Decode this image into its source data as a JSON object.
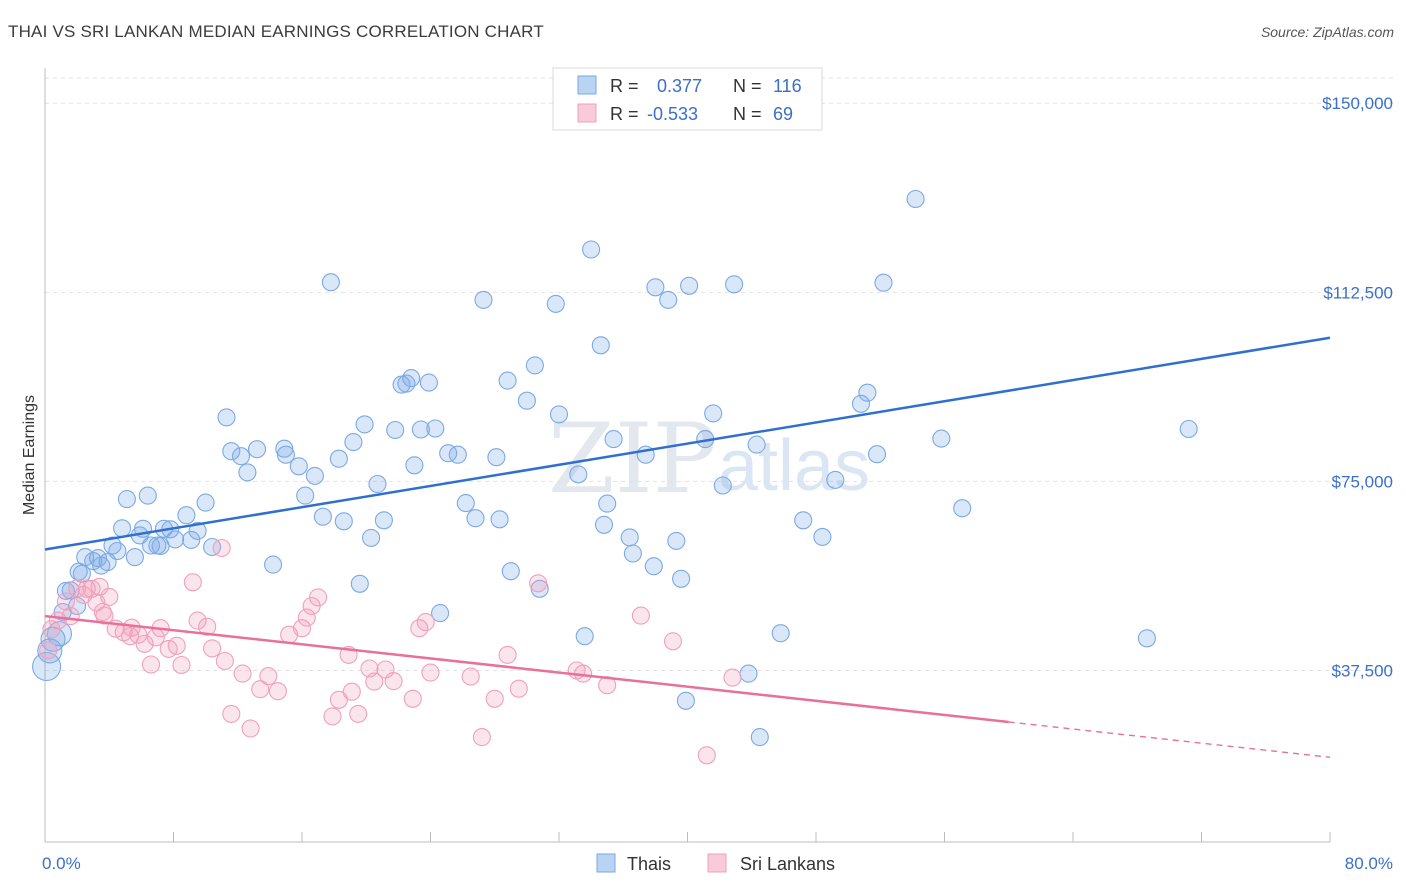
{
  "header": {
    "title": "THAI VS SRI LANKAN MEDIAN EARNINGS CORRELATION CHART",
    "source": "Source: ZipAtlas.com"
  },
  "watermark": {
    "zip": "ZIP",
    "atlas": "atlas"
  },
  "legend": {
    "rows": [
      {
        "r_label": "R =",
        "r_value": "0.377",
        "n_label": "N =",
        "n_value": "116",
        "color": "#7aaae6"
      },
      {
        "r_label": "R =",
        "r_value": "-0.533",
        "n_label": "N =",
        "n_value": "69",
        "color": "#f0a0bc"
      }
    ]
  },
  "bottom_legend": {
    "items": [
      {
        "label": "Thais",
        "color": "#7aaae6"
      },
      {
        "label": "Sri Lankans",
        "color": "#f0a0bc"
      }
    ]
  },
  "chart_data": {
    "type": "scatter",
    "title": "THAI VS SRI LANKAN MEDIAN EARNINGS CORRELATION CHART",
    "xlabel": "",
    "ylabel": "Median Earnings",
    "xlim": [
      0,
      80
    ],
    "ylim": [
      3500,
      155000
    ],
    "x_tick_labels": [
      "0.0%",
      "80.0%"
    ],
    "y_ticks": [
      37500,
      75000,
      112500,
      150000
    ],
    "y_tick_labels": [
      "$37,500",
      "$75,000",
      "$112,500",
      "$150,000"
    ],
    "grid": true,
    "series": [
      {
        "name": "Thais",
        "color": "#7aaae6",
        "line_color": "#2f6fcf",
        "trend": {
          "x": [
            0,
            80
          ],
          "y": [
            61500,
            103500
          ]
        },
        "points": [
          [
            0.1,
            38300
          ],
          [
            0.3,
            41400
          ],
          [
            0.5,
            43700
          ],
          [
            0.9,
            44800
          ],
          [
            1.1,
            49100
          ],
          [
            1.3,
            53300
          ],
          [
            1.6,
            53400
          ],
          [
            2.0,
            50300
          ],
          [
            2.1,
            57100
          ],
          [
            2.3,
            56700
          ],
          [
            2.5,
            60000
          ],
          [
            3.0,
            59200
          ],
          [
            3.3,
            59800
          ],
          [
            3.5,
            58300
          ],
          [
            3.9,
            59000
          ],
          [
            4.2,
            62300
          ],
          [
            4.5,
            61200
          ],
          [
            4.8,
            65700
          ],
          [
            5.1,
            71500
          ],
          [
            5.6,
            60000
          ],
          [
            5.9,
            64300
          ],
          [
            6.1,
            65600
          ],
          [
            6.4,
            72200
          ],
          [
            6.6,
            62300
          ],
          [
            7.0,
            62300
          ],
          [
            7.2,
            62200
          ],
          [
            7.4,
            65600
          ],
          [
            7.8,
            65500
          ],
          [
            8.1,
            63500
          ],
          [
            8.8,
            68300
          ],
          [
            9.1,
            63400
          ],
          [
            9.5,
            65200
          ],
          [
            10.0,
            70800
          ],
          [
            10.4,
            62000
          ],
          [
            11.3,
            87700
          ],
          [
            11.6,
            81000
          ],
          [
            12.2,
            80000
          ],
          [
            12.6,
            76800
          ],
          [
            13.2,
            81400
          ],
          [
            14.2,
            58500
          ],
          [
            14.9,
            81500
          ],
          [
            15.0,
            80300
          ],
          [
            15.8,
            78000
          ],
          [
            16.2,
            72200
          ],
          [
            16.8,
            76100
          ],
          [
            17.3,
            68000
          ],
          [
            17.8,
            114500
          ],
          [
            18.3,
            79500
          ],
          [
            18.6,
            67100
          ],
          [
            19.2,
            82800
          ],
          [
            19.6,
            54700
          ],
          [
            19.9,
            86300
          ],
          [
            20.3,
            63800
          ],
          [
            20.7,
            74500
          ],
          [
            21.1,
            67300
          ],
          [
            21.8,
            85200
          ],
          [
            22.2,
            94200
          ],
          [
            22.5,
            94400
          ],
          [
            22.8,
            95500
          ],
          [
            23.0,
            78200
          ],
          [
            23.4,
            85300
          ],
          [
            23.9,
            94600
          ],
          [
            24.3,
            85500
          ],
          [
            24.6,
            48900
          ],
          [
            25.1,
            80600
          ],
          [
            25.7,
            80300
          ],
          [
            26.2,
            70700
          ],
          [
            26.8,
            67700
          ],
          [
            27.3,
            111000
          ],
          [
            28.1,
            79800
          ],
          [
            28.3,
            67500
          ],
          [
            28.8,
            95000
          ],
          [
            29.0,
            57200
          ],
          [
            30.0,
            91000
          ],
          [
            30.5,
            98000
          ],
          [
            30.8,
            53700
          ],
          [
            31.8,
            110200
          ],
          [
            32.0,
            88300
          ],
          [
            33.2,
            76400
          ],
          [
            33.6,
            44300
          ],
          [
            34.0,
            121000
          ],
          [
            34.6,
            102000
          ],
          [
            34.8,
            66400
          ],
          [
            35.0,
            70600
          ],
          [
            35.4,
            83400
          ],
          [
            36.4,
            63900
          ],
          [
            36.6,
            60700
          ],
          [
            37.4,
            80300
          ],
          [
            37.9,
            58200
          ],
          [
            38.0,
            113500
          ],
          [
            38.8,
            111000
          ],
          [
            39.3,
            63200
          ],
          [
            39.6,
            55700
          ],
          [
            39.9,
            31500
          ],
          [
            40.1,
            113800
          ],
          [
            41.1,
            83400
          ],
          [
            41.6,
            88500
          ],
          [
            42.2,
            74200
          ],
          [
            42.9,
            114100
          ],
          [
            43.8,
            36900
          ],
          [
            44.3,
            82300
          ],
          [
            44.5,
            24300
          ],
          [
            45.8,
            44900
          ],
          [
            47.2,
            67300
          ],
          [
            48.4,
            64000
          ],
          [
            49.2,
            75300
          ],
          [
            50.8,
            90400
          ],
          [
            51.2,
            92600
          ],
          [
            51.8,
            80400
          ],
          [
            52.2,
            114400
          ],
          [
            54.2,
            131000
          ],
          [
            55.8,
            83500
          ],
          [
            57.1,
            69700
          ],
          [
            68.6,
            43900
          ],
          [
            71.2,
            85400
          ]
        ]
      },
      {
        "name": "Sri Lankans",
        "color": "#f0a0bc",
        "line_color": "#e8709a",
        "trend": {
          "x": [
            0,
            60
          ],
          "y": [
            48300,
            27300
          ]
        },
        "trend_dashed": {
          "x": [
            60,
            80
          ],
          "y": [
            27300,
            20300
          ]
        },
        "points": [
          [
            0.2,
            41500
          ],
          [
            0.4,
            45700
          ],
          [
            0.8,
            47400
          ],
          [
            1.3,
            51200
          ],
          [
            1.6,
            48300
          ],
          [
            2.0,
            53800
          ],
          [
            2.4,
            52500
          ],
          [
            2.6,
            53700
          ],
          [
            2.9,
            53700
          ],
          [
            3.2,
            51000
          ],
          [
            3.4,
            54100
          ],
          [
            3.6,
            49100
          ],
          [
            3.7,
            48400
          ],
          [
            4.0,
            52100
          ],
          [
            4.4,
            45800
          ],
          [
            4.9,
            45100
          ],
          [
            5.3,
            44300
          ],
          [
            5.4,
            46000
          ],
          [
            5.8,
            44600
          ],
          [
            6.2,
            42800
          ],
          [
            6.6,
            38700
          ],
          [
            6.9,
            44100
          ],
          [
            7.2,
            45900
          ],
          [
            7.7,
            41800
          ],
          [
            8.2,
            42400
          ],
          [
            8.5,
            38600
          ],
          [
            9.2,
            55000
          ],
          [
            9.5,
            47400
          ],
          [
            10.1,
            46200
          ],
          [
            10.4,
            41900
          ],
          [
            11.0,
            61800
          ],
          [
            11.2,
            39400
          ],
          [
            11.6,
            28900
          ],
          [
            12.3,
            36900
          ],
          [
            12.8,
            26000
          ],
          [
            13.4,
            33800
          ],
          [
            13.9,
            36400
          ],
          [
            14.5,
            33400
          ],
          [
            15.2,
            44600
          ],
          [
            16.0,
            45900
          ],
          [
            16.3,
            48000
          ],
          [
            16.6,
            50300
          ],
          [
            17.0,
            52000
          ],
          [
            17.9,
            28400
          ],
          [
            18.3,
            31700
          ],
          [
            18.9,
            40600
          ],
          [
            19.1,
            33300
          ],
          [
            19.5,
            28900
          ],
          [
            20.2,
            37900
          ],
          [
            20.5,
            35300
          ],
          [
            21.2,
            37700
          ],
          [
            21.7,
            35400
          ],
          [
            22.9,
            31900
          ],
          [
            23.3,
            45900
          ],
          [
            23.7,
            47100
          ],
          [
            24.0,
            37100
          ],
          [
            26.5,
            36300
          ],
          [
            27.2,
            24300
          ],
          [
            28.0,
            31900
          ],
          [
            28.8,
            40600
          ],
          [
            29.5,
            33900
          ],
          [
            30.7,
            54800
          ],
          [
            33.1,
            37500
          ],
          [
            33.5,
            36900
          ],
          [
            35.0,
            34600
          ],
          [
            37.1,
            48400
          ],
          [
            39.1,
            43300
          ],
          [
            41.2,
            20700
          ],
          [
            42.8,
            36100
          ]
        ]
      }
    ]
  }
}
